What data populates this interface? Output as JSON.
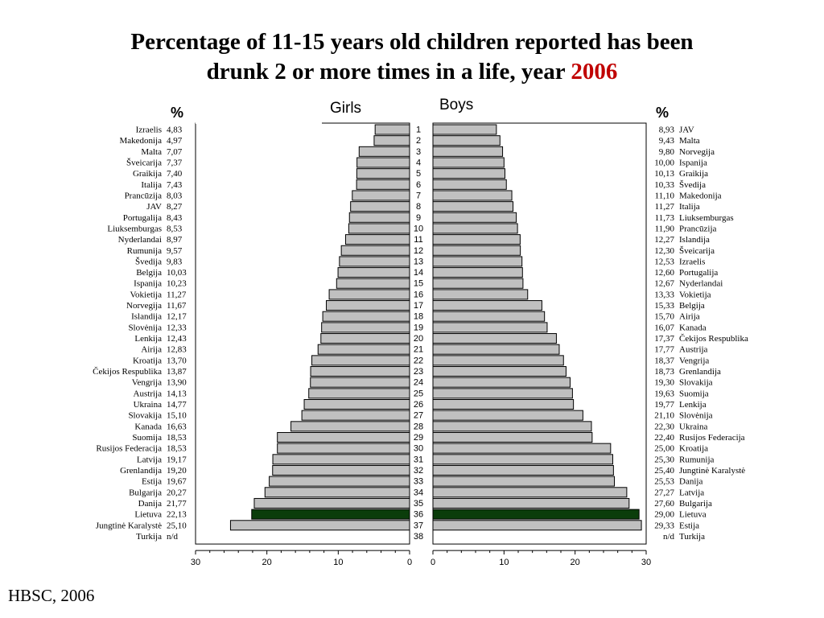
{
  "title": {
    "line1": "Percentage of 11-15 years old children reported has been",
    "line2": "drunk 2 or more times in a life, year",
    "year": "2006"
  },
  "source": "HBSC, 2006",
  "chart_data": {
    "type": "bar",
    "orientation": "horizontal",
    "layout": "population-pyramid",
    "unit_label": "%",
    "xlim": [
      0,
      30
    ],
    "x_ticks": [
      "30",
      "20",
      "10",
      "0",
      "0",
      "10",
      "20",
      "30"
    ],
    "ranks": [
      "1",
      "2",
      "3",
      "4",
      "5",
      "6",
      "7",
      "8",
      "9",
      "10",
      "11",
      "12",
      "13",
      "14",
      "15",
      "16",
      "17",
      "18",
      "19",
      "20",
      "21",
      "22",
      "23",
      "24",
      "25",
      "26",
      "27",
      "28",
      "29",
      "30",
      "31",
      "32",
      "33",
      "34",
      "35",
      "36",
      "37",
      "38"
    ],
    "highlight_color": "#0b3d0b",
    "bar_color": "#c0c0c0",
    "panels": [
      {
        "name": "Girls",
        "side": "left",
        "highlight": "Lietuva",
        "rows": [
          {
            "country": "Izraelis",
            "label": "4,83",
            "value": 4.83
          },
          {
            "country": "Makedonija",
            "label": "4,97",
            "value": 4.97
          },
          {
            "country": "Malta",
            "label": "7,07",
            "value": 7.07
          },
          {
            "country": "Šveicarija",
            "label": "7,37",
            "value": 7.37
          },
          {
            "country": "Graikija",
            "label": "7,40",
            "value": 7.4
          },
          {
            "country": "Italija",
            "label": "7,43",
            "value": 7.43
          },
          {
            "country": "Prancūzija",
            "label": "8,03",
            "value": 8.03
          },
          {
            "country": "JAV",
            "label": "8,27",
            "value": 8.27
          },
          {
            "country": "Portugalija",
            "label": "8,43",
            "value": 8.43
          },
          {
            "country": "Liuksemburgas",
            "label": "8,53",
            "value": 8.53
          },
          {
            "country": "Nyderlandai",
            "label": "8,97",
            "value": 8.97
          },
          {
            "country": "Rumunija",
            "label": "9,57",
            "value": 9.57
          },
          {
            "country": "Švedija",
            "label": "9,83",
            "value": 9.83
          },
          {
            "country": "Belgija",
            "label": "10,03",
            "value": 10.03
          },
          {
            "country": "Ispanija",
            "label": "10,23",
            "value": 10.23
          },
          {
            "country": "Vokietija",
            "label": "11,27",
            "value": 11.27
          },
          {
            "country": "Norvegija",
            "label": "11,67",
            "value": 11.67
          },
          {
            "country": "Islandija",
            "label": "12,17",
            "value": 12.17
          },
          {
            "country": "Slovėnija",
            "label": "12,33",
            "value": 12.33
          },
          {
            "country": "Lenkija",
            "label": "12,43",
            "value": 12.43
          },
          {
            "country": "Airija",
            "label": "12,83",
            "value": 12.83
          },
          {
            "country": "Kroatija",
            "label": "13,70",
            "value": 13.7
          },
          {
            "country": "Čekijos Respublika",
            "label": "13,87",
            "value": 13.87
          },
          {
            "country": "Vengrija",
            "label": "13,90",
            "value": 13.9
          },
          {
            "country": "Austrija",
            "label": "14,13",
            "value": 14.13
          },
          {
            "country": "Ukraina",
            "label": "14,77",
            "value": 14.77
          },
          {
            "country": "Slovakija",
            "label": "15,10",
            "value": 15.1
          },
          {
            "country": "Kanada",
            "label": "16,63",
            "value": 16.63
          },
          {
            "country": "Suomija",
            "label": "18,53",
            "value": 18.53
          },
          {
            "country": "Rusijos Federacija",
            "label": "18,53",
            "value": 18.53
          },
          {
            "country": "Latvija",
            "label": "19,17",
            "value": 19.17
          },
          {
            "country": "Grenlandija",
            "label": "19,20",
            "value": 19.2
          },
          {
            "country": "Estija",
            "label": "19,67",
            "value": 19.67
          },
          {
            "country": "Bulgarija",
            "label": "20,27",
            "value": 20.27
          },
          {
            "country": "Danija",
            "label": "21,77",
            "value": 21.77
          },
          {
            "country": "Lietuva",
            "label": "22,13",
            "value": 22.13
          },
          {
            "country": "Jungtinė Karalystė",
            "label": "25,10",
            "value": 25.1
          },
          {
            "country": "Turkija",
            "label": "n/d",
            "value": null
          }
        ]
      },
      {
        "name": "Boys",
        "side": "right",
        "highlight": "Lietuva",
        "rows": [
          {
            "country": "JAV",
            "label": "8,93",
            "value": 8.93
          },
          {
            "country": "Malta",
            "label": "9,43",
            "value": 9.43
          },
          {
            "country": "Norvegija",
            "label": "9,80",
            "value": 9.8
          },
          {
            "country": "Ispanija",
            "label": "10,00",
            "value": 10.0
          },
          {
            "country": "Graikija",
            "label": "10,13",
            "value": 10.13
          },
          {
            "country": "Švedija",
            "label": "10,33",
            "value": 10.33
          },
          {
            "country": "Makedonija",
            "label": "11,10",
            "value": 11.1
          },
          {
            "country": "Italija",
            "label": "11,27",
            "value": 11.27
          },
          {
            "country": "Liuksemburgas",
            "label": "11,73",
            "value": 11.73
          },
          {
            "country": "Prancūzija",
            "label": "11,90",
            "value": 11.9
          },
          {
            "country": "Islandija",
            "label": "12,27",
            "value": 12.27
          },
          {
            "country": "Šveicarija",
            "label": "12,30",
            "value": 12.3
          },
          {
            "country": "Izraelis",
            "label": "12,53",
            "value": 12.53
          },
          {
            "country": "Portugalija",
            "label": "12,60",
            "value": 12.6
          },
          {
            "country": "Nyderlandai",
            "label": "12,67",
            "value": 12.67
          },
          {
            "country": "Vokietija",
            "label": "13,33",
            "value": 13.33
          },
          {
            "country": "Belgija",
            "label": "15,33",
            "value": 15.33
          },
          {
            "country": "Airija",
            "label": "15,70",
            "value": 15.7
          },
          {
            "country": "Kanada",
            "label": "16,07",
            "value": 16.07
          },
          {
            "country": "Čekijos Respublika",
            "label": "17,37",
            "value": 17.37
          },
          {
            "country": "Austrija",
            "label": "17,77",
            "value": 17.77
          },
          {
            "country": "Vengrija",
            "label": "18,37",
            "value": 18.37
          },
          {
            "country": "Grenlandija",
            "label": "18,73",
            "value": 18.73
          },
          {
            "country": "Slovakija",
            "label": "19,30",
            "value": 19.3
          },
          {
            "country": "Suomija",
            "label": "19,63",
            "value": 19.63
          },
          {
            "country": "Lenkija",
            "label": "19,77",
            "value": 19.77
          },
          {
            "country": "Slovėnija",
            "label": "21,10",
            "value": 21.1
          },
          {
            "country": "Ukraina",
            "label": "22,30",
            "value": 22.3
          },
          {
            "country": "Rusijos Federacija",
            "label": "22,40",
            "value": 22.4
          },
          {
            "country": "Kroatija",
            "label": "25,00",
            "value": 25.0
          },
          {
            "country": "Rumunija",
            "label": "25,30",
            "value": 25.3
          },
          {
            "country": "Jungtinė Karalystė",
            "label": "25,40",
            "value": 25.4
          },
          {
            "country": "Danija",
            "label": "25,53",
            "value": 25.53
          },
          {
            "country": "Latvija",
            "label": "27,27",
            "value": 27.27
          },
          {
            "country": "Bulgarija",
            "label": "27,60",
            "value": 27.6
          },
          {
            "country": "Lietuva",
            "label": "29,00",
            "value": 29.0
          },
          {
            "country": "Estija",
            "label": "29,33",
            "value": 29.33
          },
          {
            "country": "Turkija",
            "label": "n/d",
            "value": null
          }
        ]
      }
    ]
  }
}
